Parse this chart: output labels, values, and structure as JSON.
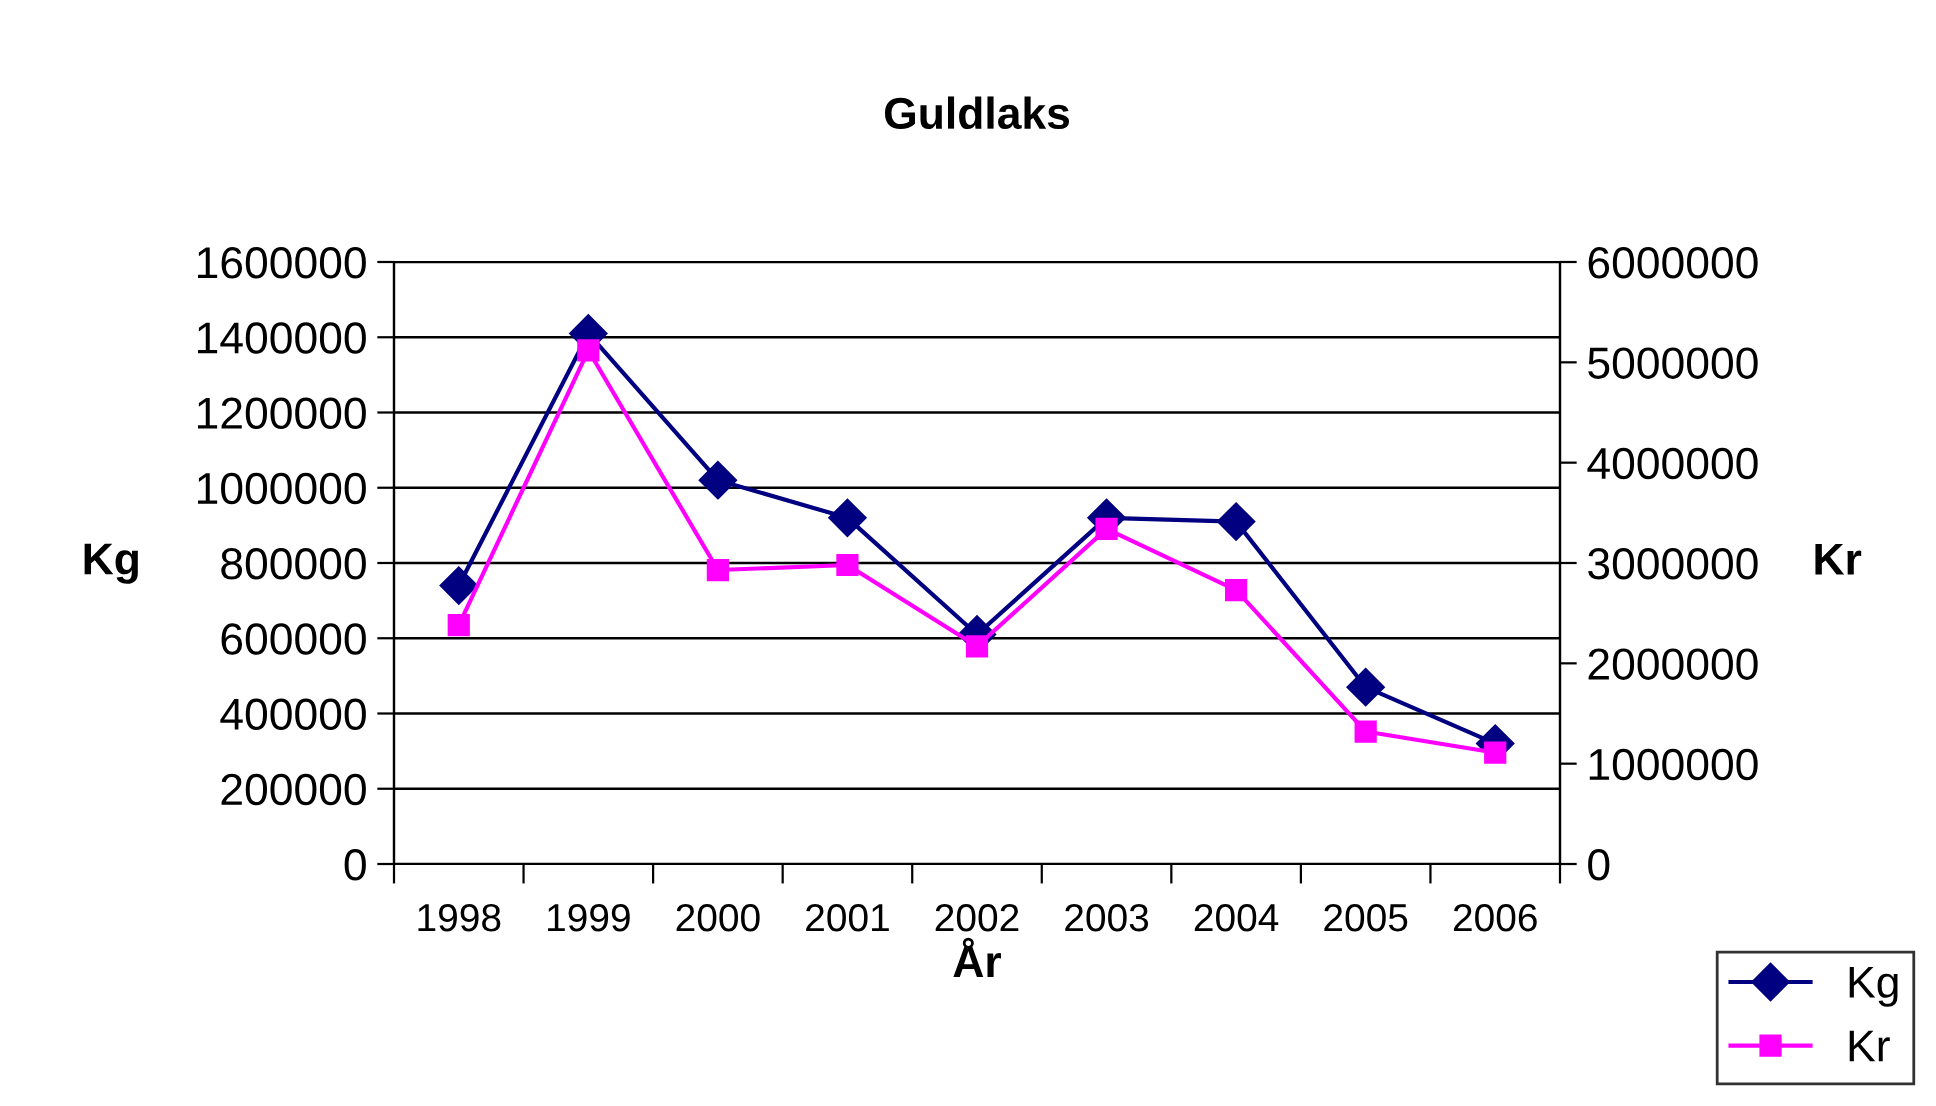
{
  "chart_data": {
    "type": "line",
    "title": "Guldlaks",
    "xlabel": "År",
    "ylabel": "Kg",
    "y2label": "Kr",
    "categories": [
      "1998",
      "1999",
      "2000",
      "2001",
      "2002",
      "2003",
      "2004",
      "2005",
      "2006"
    ],
    "series": [
      {
        "name": "Kg",
        "color": "#000080",
        "marker": "diamond",
        "values": [
          740000,
          1410000,
          1020000,
          920000,
          610000,
          920000,
          910000,
          470000,
          320000
        ]
      },
      {
        "name": "Kr",
        "color": "#ff00ff",
        "marker": "square",
        "axis": "y2",
        "values": [
          2380000,
          5120000,
          2930000,
          2980000,
          2170000,
          3340000,
          2730000,
          1320000,
          1110000
        ]
      }
    ],
    "ylim": [
      0,
      1600000
    ],
    "yticks": [
      0,
      200000,
      400000,
      600000,
      800000,
      1000000,
      1200000,
      1400000,
      1600000
    ],
    "y2lim": [
      0,
      6000000
    ],
    "y2ticks": [
      0,
      1000000,
      2000000,
      3000000,
      4000000,
      5000000,
      6000000
    ],
    "grid": "y",
    "legend": "bottom right",
    "line_style": "solid"
  }
}
